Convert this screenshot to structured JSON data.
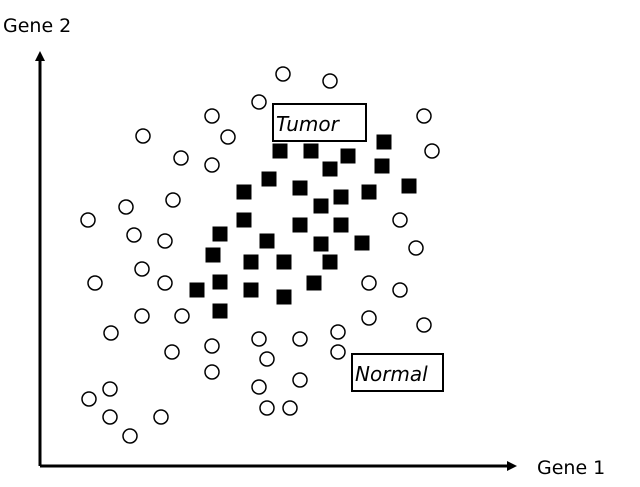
{
  "axes": {
    "x_label": "Gene 1",
    "y_label": "Gene 2"
  },
  "groups": {
    "tumor": {
      "label": "Tumor",
      "marker": "filled-square",
      "color": "#000000",
      "points": [
        [
          280,
          151
        ],
        [
          311,
          151
        ],
        [
          348,
          156
        ],
        [
          384,
          142
        ],
        [
          330,
          169
        ],
        [
          382,
          166
        ],
        [
          269,
          179
        ],
        [
          244,
          192
        ],
        [
          300,
          188
        ],
        [
          341,
          197
        ],
        [
          369,
          192
        ],
        [
          409,
          186
        ],
        [
          321,
          206
        ],
        [
          244,
          220
        ],
        [
          300,
          225
        ],
        [
          341,
          225
        ],
        [
          220,
          234
        ],
        [
          267,
          241
        ],
        [
          321,
          244
        ],
        [
          362,
          243
        ],
        [
          213,
          255
        ],
        [
          251,
          262
        ],
        [
          284,
          262
        ],
        [
          330,
          262
        ],
        [
          220,
          282
        ],
        [
          251,
          290
        ],
        [
          284,
          297
        ],
        [
          314,
          283
        ],
        [
          197,
          290
        ],
        [
          220,
          311
        ]
      ]
    },
    "normal": {
      "label": "Normal",
      "marker": "open-circle",
      "color": "#000000",
      "points": [
        [
          283,
          74
        ],
        [
          330,
          81
        ],
        [
          259,
          102
        ],
        [
          212,
          116
        ],
        [
          228,
          137
        ],
        [
          143,
          136
        ],
        [
          424,
          116
        ],
        [
          432,
          151
        ],
        [
          181,
          158
        ],
        [
          212,
          165
        ],
        [
          173,
          200
        ],
        [
          126,
          207
        ],
        [
          88,
          220
        ],
        [
          134,
          235
        ],
        [
          165,
          241
        ],
        [
          400,
          220
        ],
        [
          416,
          248
        ],
        [
          142,
          269
        ],
        [
          165,
          283
        ],
        [
          95,
          283
        ],
        [
          369,
          283
        ],
        [
          400,
          290
        ],
        [
          142,
          316
        ],
        [
          182,
          316
        ],
        [
          111,
          333
        ],
        [
          369,
          318
        ],
        [
          424,
          325
        ],
        [
          338,
          332
        ],
        [
          259,
          339
        ],
        [
          300,
          339
        ],
        [
          212,
          346
        ],
        [
          172,
          352
        ],
        [
          338,
          352
        ],
        [
          267,
          359
        ],
        [
          212,
          372
        ],
        [
          300,
          380
        ],
        [
          259,
          387
        ],
        [
          110,
          389
        ],
        [
          89,
          399
        ],
        [
          110,
          417
        ],
        [
          161,
          417
        ],
        [
          130,
          436
        ],
        [
          267,
          408
        ],
        [
          290,
          408
        ]
      ]
    }
  }
}
